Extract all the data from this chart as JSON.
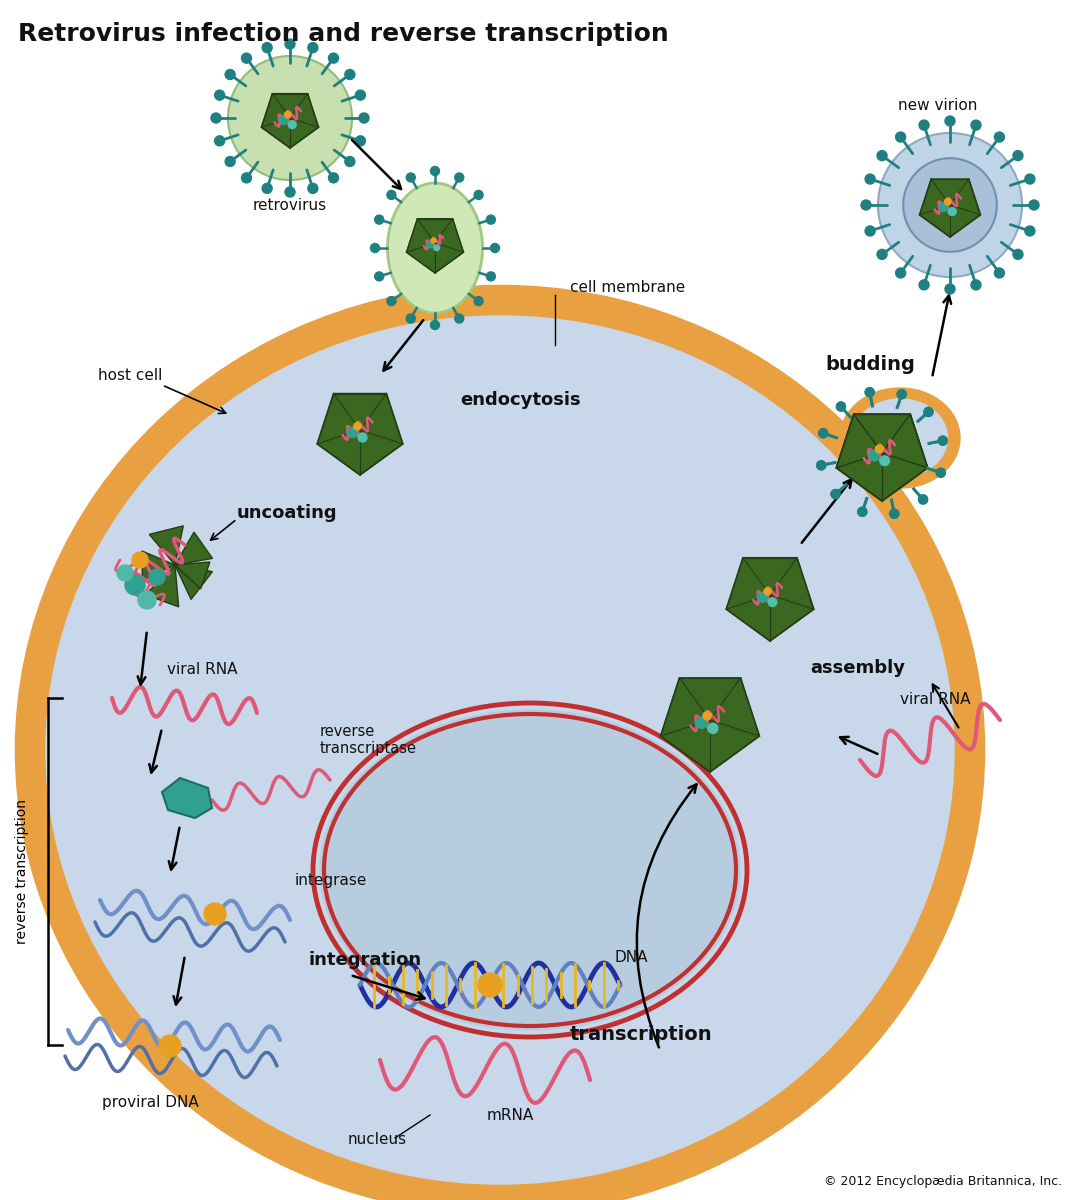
{
  "title": "Retrovirus infection and reverse transcription",
  "title_fontsize": 18,
  "title_fontweight": "bold",
  "background_color": "#ffffff",
  "cell_fill": "#c8d8ea",
  "cell_edge_color": "#e8a040",
  "cell_edge_width": 22,
  "nucleus_fill": "#b8cce0",
  "nucleus_edge_color": "#c03030",
  "nucleus_edge_width": 3.5,
  "rna_color": "#e05878",
  "dna_color1": "#3040a0",
  "dna_color2": "#7090c8",
  "integrase_color": "#e8a020",
  "rt_color": "#30a090",
  "capsid_color": "#3a6820",
  "capsid_edge": "#253d15",
  "spike_color": "#1e8080",
  "virus_outer_green": "#c8e0b0",
  "virus_outer_blue": "#b8cce0",
  "arrow_color": "#111111",
  "label_color": "#111111",
  "bold_labels": [
    "uncoating",
    "endocytosis",
    "budding",
    "assembly",
    "integration",
    "transcription"
  ],
  "copyright": "© 2012 Encyclopædia Britannica, Inc."
}
